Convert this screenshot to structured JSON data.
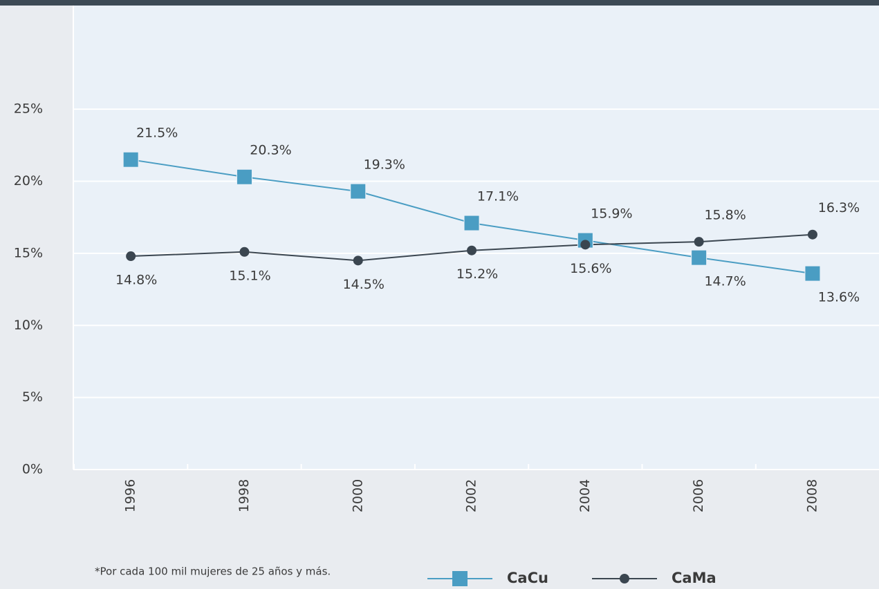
{
  "chart_data": {
    "type": "line",
    "categories": [
      "1996",
      "1998",
      "2000",
      "2002",
      "2004",
      "2006",
      "2008"
    ],
    "series": [
      {
        "name": "CaCu",
        "color": "#4a9dc3",
        "marker": "square",
        "values": [
          21.5,
          20.3,
          19.3,
          17.1,
          15.9,
          14.7,
          13.6
        ],
        "value_labels": [
          "21.5%",
          "20.3%",
          "19.3%",
          "17.1%",
          "15.9%",
          "14.7%",
          "13.6%"
        ]
      },
      {
        "name": "CaMa",
        "color": "#3b4650",
        "marker": "circle",
        "values": [
          14.8,
          15.1,
          14.5,
          15.2,
          15.6,
          15.8,
          16.3
        ],
        "value_labels": [
          "14.8%",
          "15.1%",
          "14.5%",
          "15.2%",
          "15.6%",
          "15.8%",
          "16.3%"
        ]
      }
    ],
    "ylim": [
      0,
      32
    ],
    "yticks": [
      {
        "value": 0,
        "label": "0%"
      },
      {
        "value": 5,
        "label": "5%"
      },
      {
        "value": 10,
        "label": "10%"
      },
      {
        "value": 15,
        "label": "15%"
      },
      {
        "value": 20,
        "label": "20%"
      },
      {
        "value": 25,
        "label": "25%"
      }
    ],
    "grid": true,
    "footnote": "*Por cada 100 mil mujeres de 25 años y más.",
    "legend": "bottom"
  }
}
